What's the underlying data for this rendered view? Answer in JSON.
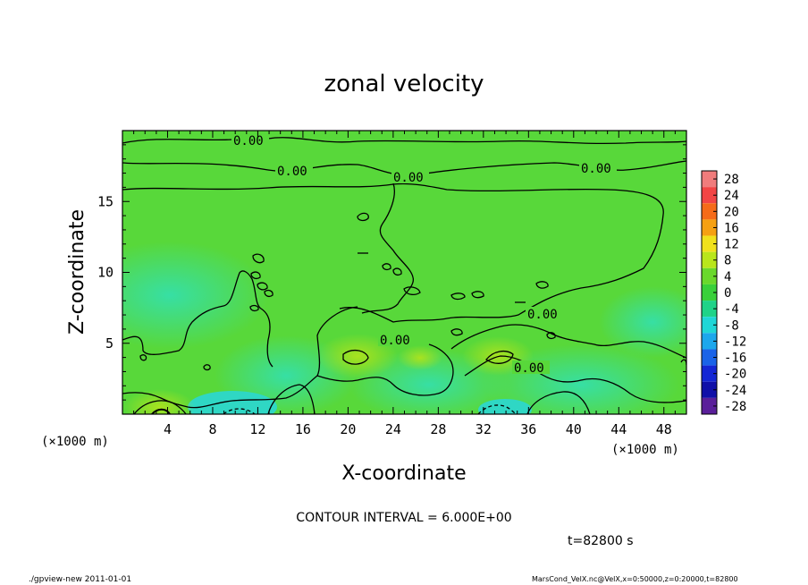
{
  "chart_data": {
    "type": "heatmap",
    "title": "zonal velocity",
    "xlabel": "X-coordinate",
    "ylabel": "Z-coordinate",
    "x_unit": "(×1000 m)",
    "y_unit": "(×1000 m)",
    "xlim": [
      0,
      50
    ],
    "ylim": [
      0,
      20
    ],
    "x_ticks": [
      4,
      8,
      12,
      16,
      20,
      24,
      28,
      32,
      36,
      40,
      44,
      48
    ],
    "y_ticks": [
      5,
      10,
      15
    ],
    "colorbar_levels": [
      28,
      24,
      20,
      16,
      12,
      8,
      4,
      0,
      -4,
      -8,
      -12,
      -16,
      -20,
      -24,
      -28
    ],
    "colorbar_colors": [
      "#f07c7c",
      "#f24545",
      "#f56b19",
      "#f5a012",
      "#f0e11c",
      "#b9e61b",
      "#6ad82c",
      "#39d03a",
      "#1fd388",
      "#1fd6d6",
      "#1ca7ec",
      "#1a63e8",
      "#1426d4",
      "#1010a8",
      "#5a1f9a"
    ],
    "contour_interval": "CONTOUR INTERVAL = 6.000E+00",
    "contour_labels": [
      "0.00",
      "0.00",
      "0.00",
      "0.00",
      "0.00",
      "0.00",
      "0.00"
    ],
    "time_label": "t=82800 s",
    "dominant_value_range": [
      -4,
      4
    ]
  },
  "footer": {
    "left": "./gpview-new   2011-01-01",
    "right": "MarsCond_VelX.nc@VelX,x=0:50000,z=0:20000,t=82800"
  }
}
